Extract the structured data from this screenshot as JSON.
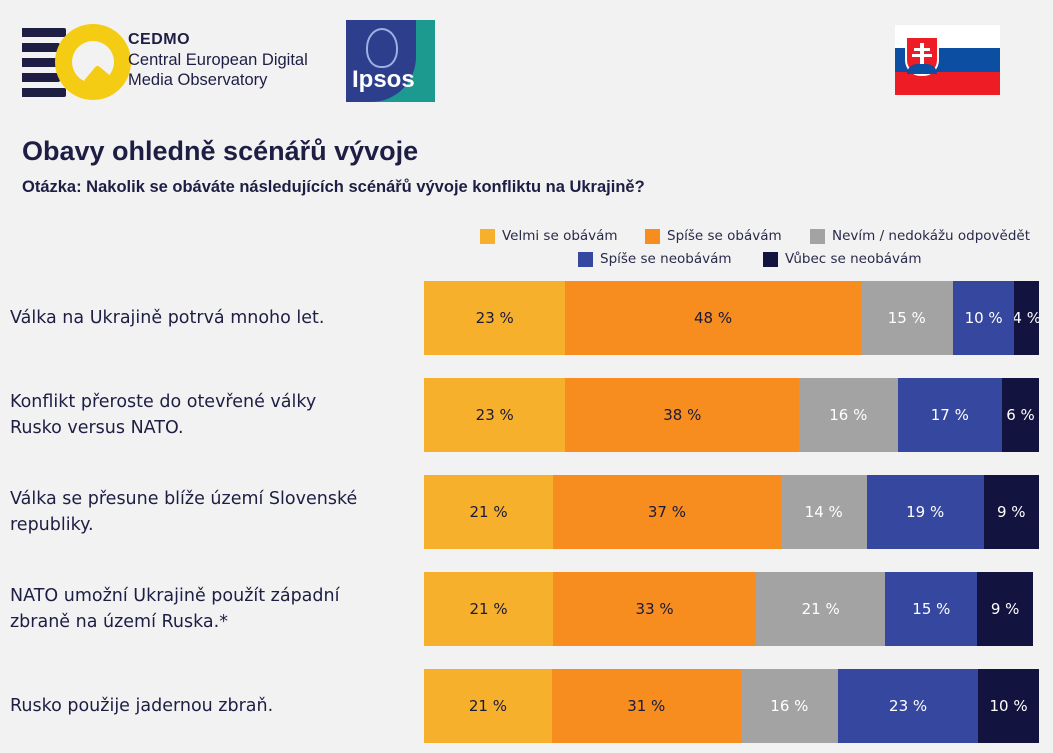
{
  "header": {
    "cedmo_name": "CEDMO",
    "cedmo_line1": "Central European Digital",
    "cedmo_line2": "Media Observatory",
    "ipsos_name": "Ipsos"
  },
  "title": "Obavy ohledně scénářů vývoje",
  "question": "Otázka: Nakolik se obáváte následujících scénářů vývoje konfliktu na Ukrajině?",
  "chart_data": {
    "type": "bar",
    "orientation": "horizontal",
    "stacked": true,
    "value_suffix": " %",
    "xlim": [
      0,
      100
    ],
    "grid": false,
    "legend_position": "top-right",
    "categories": [
      [
        "Válka na Ukrajině potrvá mnoho let."
      ],
      [
        "Konflikt přeroste do otevřené války",
        "Rusko versus NATO."
      ],
      [
        "Válka se přesune blíže území Slovenské",
        "republiky."
      ],
      [
        "NATO umožní Ukrajině použít západní",
        "zbraně na území Ruska.*"
      ],
      [
        "Rusko použije jadernou zbraň."
      ]
    ],
    "series": [
      {
        "name": "Velmi se obávám",
        "color": "#f7b02b",
        "text_color": "#1a1a3a",
        "values": [
          23,
          23,
          21,
          21,
          21
        ]
      },
      {
        "name": "Spíše se obávám",
        "color": "#f68d1e",
        "text_color": "#1a1a3a",
        "values": [
          48,
          38,
          37,
          33,
          31
        ]
      },
      {
        "name": "Nevím / nedokážu odpovědět",
        "color": "#a3a3a3",
        "text_color": "#ffffff",
        "values": [
          15,
          16,
          14,
          21,
          16
        ]
      },
      {
        "name": "Spíše se neobávám",
        "color": "#35479e",
        "text_color": "#ffffff",
        "values": [
          10,
          17,
          19,
          15,
          23
        ]
      },
      {
        "name": "Vůbec se neobávám",
        "color": "#13133f",
        "text_color": "#ffffff",
        "values": [
          4,
          6,
          9,
          9,
          10
        ]
      }
    ]
  }
}
